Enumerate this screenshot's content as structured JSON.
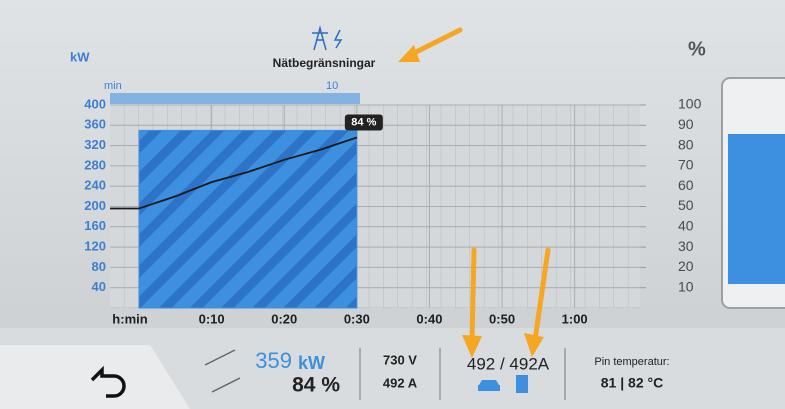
{
  "header": {
    "title": "Nätbegränsningar"
  },
  "limit_strip": {
    "label": "min",
    "value": "10"
  },
  "chart_data": {
    "type": "line",
    "y_label": "kW",
    "y2_label": "%",
    "x_label": "h:min",
    "xlim": [
      -4,
      69
    ],
    "xticks": [
      {
        "value": 10,
        "label": "0:10"
      },
      {
        "value": 20,
        "label": "0:20"
      },
      {
        "value": 30,
        "label": "0:30"
      },
      {
        "value": 40,
        "label": "0:40"
      },
      {
        "value": 50,
        "label": "0:50"
      },
      {
        "value": 60,
        "label": "1:00"
      }
    ],
    "ylim": [
      0,
      400
    ],
    "yticks": [
      40,
      80,
      120,
      160,
      200,
      240,
      280,
      320,
      360,
      400
    ],
    "y2lim": [
      0,
      100
    ],
    "y2ticks": [
      10,
      20,
      30,
      40,
      50,
      60,
      70,
      80,
      90,
      100
    ],
    "grid": true,
    "series": [
      {
        "type": "area",
        "color": "#3d8fe0",
        "x": [
          0,
          30
        ],
        "values": [
          350,
          350
        ]
      },
      {
        "type": "line",
        "color": "#1a1a1a",
        "axis": "y2",
        "x": [
          -4,
          0,
          5,
          10,
          15,
          20,
          25,
          30
        ],
        "values": [
          49,
          49,
          55,
          62,
          67,
          73,
          78,
          84
        ],
        "value_labels": [
          null,
          null,
          null,
          null,
          null,
          null,
          null,
          "84 %"
        ]
      }
    ]
  },
  "status": {
    "power": "359",
    "power_unit": "kW",
    "soc": "84 %",
    "voltage": "730 V",
    "current": "492 A",
    "current_limit": "492 / 492A",
    "temp_label": "Pin temperatur:",
    "temp_values": "81 | 82 °C"
  }
}
